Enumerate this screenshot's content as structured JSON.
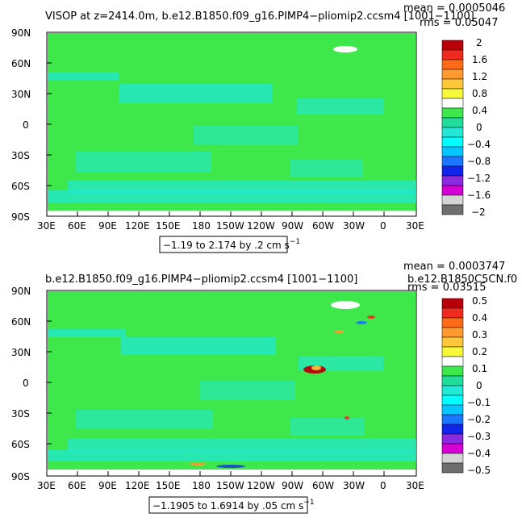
{
  "chart_data": [
    {
      "type": "heatmap",
      "title": "VISOP at z=2414.0m, b.e12.B1850.f09_g16.PIMP4−pliomip2.ccsm4 [1001−1100]",
      "stats": {
        "mean": "mean = 0.0005046",
        "rms": "rms = 0.05047"
      },
      "range_note": "−1.19 to 2.174 by .2 cm s",
      "range_unit_exp": "−1",
      "x_ticks": [
        "30E",
        "60E",
        "90E",
        "120E",
        "150E",
        "180",
        "150W",
        "120W",
        "90W",
        "60W",
        "30W",
        "0",
        "30E"
      ],
      "y_ticks": [
        "90N",
        "60N",
        "30N",
        "0",
        "30S",
        "60S",
        "90S"
      ],
      "colorbar": {
        "labels": [
          "2",
          "1.6",
          "1.2",
          "0.8",
          "0.4",
          "0",
          "−0.4",
          "−0.8",
          "−1.2",
          "−1.6",
          "−2"
        ],
        "colors": [
          "#b8000a",
          "#ee2b1e",
          "#fe6a18",
          "#ff9930",
          "#ffc73a",
          "#f8f83a",
          "#ffffff",
          "#3ee84a",
          "#22dd9a",
          "#22e8d6",
          "#00ffff",
          "#06c6ff",
          "#1a76ff",
          "#1025e8",
          "#8a2be2",
          "#d400d4",
          "#d4d4d4",
          "#6e6e6e"
        ],
        "zero_band": "#3ee84a",
        "near_zero_band": "#22e8d6"
      },
      "field_summary": "near-zero everywhere"
    },
    {
      "type": "heatmap",
      "title": "b.e12.B1850.f09_g16.PIMP4−pliomip2.ccsm4 [1001−1100]",
      "right_title": "b.e12.B1850C5CN.f0",
      "stats": {
        "mean": "mean = 0.0003747",
        "rms": "rms = 0.03515"
      },
      "range_note": "−1.1905 to 1.6914 by .05 cm s",
      "range_unit_exp": "−1",
      "x_ticks": [
        "30E",
        "60E",
        "90E",
        "120E",
        "150E",
        "180",
        "150W",
        "120W",
        "90W",
        "60W",
        "30W",
        "0",
        "30E"
      ],
      "y_ticks": [
        "90N",
        "60N",
        "30N",
        "0",
        "30S",
        "60S",
        "90S"
      ],
      "colorbar": {
        "labels": [
          "0.5",
          "0.4",
          "0.3",
          "0.2",
          "0.1",
          "0",
          "−0.1",
          "−0.2",
          "−0.3",
          "−0.4",
          "−0.5"
        ],
        "colors": [
          "#b8000a",
          "#ee2b1e",
          "#fe6a18",
          "#ff9930",
          "#ffc73a",
          "#f8f83a",
          "#ffffff",
          "#3ee84a",
          "#22dd9a",
          "#22e8d6",
          "#00ffff",
          "#06c6ff",
          "#1a76ff",
          "#1025e8",
          "#8a2be2",
          "#d400d4",
          "#d4d4d4",
          "#6e6e6e"
        ],
        "zero_band": "#3ee84a",
        "near_zero_band": "#22e8d6"
      },
      "field_summary": "near-zero with localized positive/negative extremes near topography"
    }
  ]
}
